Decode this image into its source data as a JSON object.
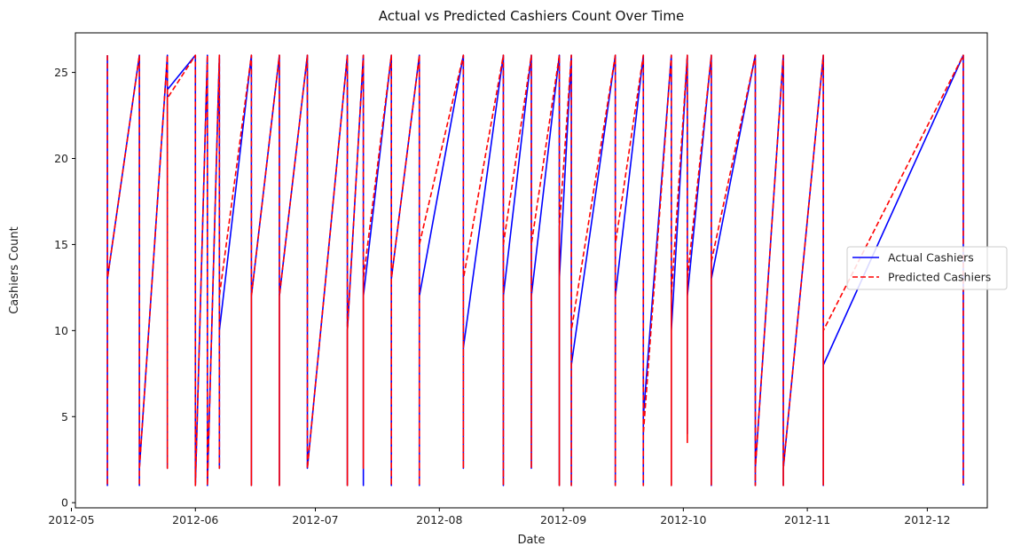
{
  "chart_data": {
    "type": "line",
    "title": "Actual vs Predicted Cashiers Count Over Time",
    "xlabel": "Date",
    "ylabel": "Cashiers Count",
    "x_type": "date",
    "xlim": [
      "2012-05-02",
      "2012-12-16"
    ],
    "ylim": [
      -0.3,
      27.3
    ],
    "x_ticks": [
      "2012-05-01",
      "2012-06-01",
      "2012-07-01",
      "2012-08-01",
      "2012-09-01",
      "2012-10-01",
      "2012-11-01",
      "2012-12-01"
    ],
    "x_tick_labels": [
      "2012-05",
      "2012-06",
      "2012-07",
      "2012-08",
      "2012-09",
      "2012-10",
      "2012-11",
      "2012-12"
    ],
    "y_ticks": [
      0,
      5,
      10,
      15,
      20,
      25
    ],
    "y_tick_labels": [
      "0",
      "5",
      "10",
      "15",
      "20",
      "25"
    ],
    "grid": false,
    "legend_position": "center-right",
    "series": [
      {
        "name": "Actual Cashiers",
        "color": "#0000ff",
        "style": "solid",
        "points": [
          [
            "2012-05-10",
            26
          ],
          [
            "2012-05-10",
            1
          ],
          [
            "2012-05-10",
            13
          ],
          [
            "2012-05-18",
            26
          ],
          [
            "2012-05-18",
            1
          ],
          [
            "2012-05-18",
            2
          ],
          [
            "2012-05-25",
            26
          ],
          [
            "2012-05-25",
            2
          ],
          [
            "2012-05-25",
            24
          ],
          [
            "2012-06-01",
            26
          ],
          [
            "2012-06-01",
            1
          ],
          [
            "2012-06-04",
            26
          ],
          [
            "2012-06-04",
            1
          ],
          [
            "2012-06-07",
            26
          ],
          [
            "2012-06-07",
            2
          ],
          [
            "2012-06-07",
            10
          ],
          [
            "2012-06-15",
            26
          ],
          [
            "2012-06-15",
            1
          ],
          [
            "2012-06-15",
            12
          ],
          [
            "2012-06-22",
            26
          ],
          [
            "2012-06-22",
            1
          ],
          [
            "2012-06-22",
            12
          ],
          [
            "2012-06-29",
            26
          ],
          [
            "2012-06-29",
            2
          ],
          [
            "2012-07-09",
            26
          ],
          [
            "2012-07-09",
            1
          ],
          [
            "2012-07-09",
            10
          ],
          [
            "2012-07-13",
            26
          ],
          [
            "2012-07-13",
            1
          ],
          [
            "2012-07-13",
            12
          ],
          [
            "2012-07-20",
            26
          ],
          [
            "2012-07-20",
            1
          ],
          [
            "2012-07-20",
            13
          ],
          [
            "2012-07-27",
            26
          ],
          [
            "2012-07-27",
            1
          ],
          [
            "2012-07-27",
            12
          ],
          [
            "2012-08-07",
            26
          ],
          [
            "2012-08-07",
            2
          ],
          [
            "2012-08-07",
            9
          ],
          [
            "2012-08-17",
            26
          ],
          [
            "2012-08-17",
            1
          ],
          [
            "2012-08-17",
            12
          ],
          [
            "2012-08-24",
            26
          ],
          [
            "2012-08-24",
            2
          ],
          [
            "2012-08-24",
            12
          ],
          [
            "2012-08-31",
            26
          ],
          [
            "2012-08-31",
            1
          ],
          [
            "2012-08-31",
            13
          ],
          [
            "2012-09-03",
            26
          ],
          [
            "2012-09-03",
            1
          ],
          [
            "2012-09-03",
            8
          ],
          [
            "2012-09-14",
            26
          ],
          [
            "2012-09-14",
            1
          ],
          [
            "2012-09-14",
            12
          ],
          [
            "2012-09-21",
            26
          ],
          [
            "2012-09-21",
            1
          ],
          [
            "2012-09-21",
            5
          ],
          [
            "2012-09-28",
            26
          ],
          [
            "2012-09-28",
            1
          ],
          [
            "2012-09-28",
            10
          ],
          [
            "2012-10-02",
            26
          ],
          [
            "2012-10-02",
            4
          ],
          [
            "2012-10-02",
            12
          ],
          [
            "2012-10-08",
            26
          ],
          [
            "2012-10-08",
            1
          ],
          [
            "2012-10-08",
            13
          ],
          [
            "2012-10-19",
            26
          ],
          [
            "2012-10-19",
            1
          ],
          [
            "2012-10-19",
            2
          ],
          [
            "2012-10-26",
            26
          ],
          [
            "2012-10-26",
            1
          ],
          [
            "2012-10-26",
            2
          ],
          [
            "2012-11-05",
            26
          ],
          [
            "2012-11-05",
            1
          ],
          [
            "2012-11-05",
            8
          ],
          [
            "2012-12-10",
            26
          ],
          [
            "2012-12-10",
            1
          ]
        ]
      },
      {
        "name": "Predicted Cashiers",
        "color": "#ff0000",
        "style": "dashed",
        "points": [
          [
            "2012-05-10",
            26
          ],
          [
            "2012-05-10",
            1
          ],
          [
            "2012-05-10",
            13
          ],
          [
            "2012-05-18",
            26
          ],
          [
            "2012-05-18",
            1
          ],
          [
            "2012-05-18",
            2
          ],
          [
            "2012-05-25",
            26
          ],
          [
            "2012-05-25",
            2
          ],
          [
            "2012-05-25",
            23.5
          ],
          [
            "2012-06-01",
            26
          ],
          [
            "2012-06-01",
            1
          ],
          [
            "2012-06-04",
            26
          ],
          [
            "2012-06-04",
            1
          ],
          [
            "2012-06-07",
            26
          ],
          [
            "2012-06-07",
            2
          ],
          [
            "2012-06-07",
            12
          ],
          [
            "2012-06-15",
            26
          ],
          [
            "2012-06-15",
            1
          ],
          [
            "2012-06-15",
            12
          ],
          [
            "2012-06-22",
            26
          ],
          [
            "2012-06-22",
            1
          ],
          [
            "2012-06-22",
            12
          ],
          [
            "2012-06-29",
            26
          ],
          [
            "2012-06-29",
            2
          ],
          [
            "2012-07-09",
            26
          ],
          [
            "2012-07-09",
            1
          ],
          [
            "2012-07-09",
            10
          ],
          [
            "2012-07-13",
            26
          ],
          [
            "2012-07-13",
            2
          ],
          [
            "2012-07-13",
            13
          ],
          [
            "2012-07-20",
            26
          ],
          [
            "2012-07-20",
            1
          ],
          [
            "2012-07-20",
            13
          ],
          [
            "2012-07-27",
            26
          ],
          [
            "2012-07-27",
            1
          ],
          [
            "2012-07-27",
            15
          ],
          [
            "2012-08-07",
            26
          ],
          [
            "2012-08-07",
            2
          ],
          [
            "2012-08-07",
            13
          ],
          [
            "2012-08-17",
            26
          ],
          [
            "2012-08-17",
            1
          ],
          [
            "2012-08-17",
            15
          ],
          [
            "2012-08-24",
            26
          ],
          [
            "2012-08-24",
            2
          ],
          [
            "2012-08-24",
            15
          ],
          [
            "2012-08-31",
            26
          ],
          [
            "2012-08-31",
            1
          ],
          [
            "2012-08-31",
            16
          ],
          [
            "2012-09-03",
            26
          ],
          [
            "2012-09-03",
            1
          ],
          [
            "2012-09-03",
            10
          ],
          [
            "2012-09-14",
            26
          ],
          [
            "2012-09-14",
            1
          ],
          [
            "2012-09-14",
            15
          ],
          [
            "2012-09-21",
            26
          ],
          [
            "2012-09-21",
            1
          ],
          [
            "2012-09-21",
            4
          ],
          [
            "2012-09-28",
            26
          ],
          [
            "2012-09-28",
            1
          ],
          [
            "2012-09-28",
            12
          ],
          [
            "2012-10-02",
            26
          ],
          [
            "2012-10-02",
            3.5
          ],
          [
            "2012-10-02",
            13
          ],
          [
            "2012-10-08",
            26
          ],
          [
            "2012-10-08",
            1
          ],
          [
            "2012-10-08",
            14
          ],
          [
            "2012-10-19",
            26
          ],
          [
            "2012-10-19",
            1
          ],
          [
            "2012-10-19",
            2
          ],
          [
            "2012-10-26",
            26
          ],
          [
            "2012-10-26",
            1
          ],
          [
            "2012-10-26",
            2
          ],
          [
            "2012-11-05",
            26
          ],
          [
            "2012-11-05",
            1
          ],
          [
            "2012-11-05",
            10
          ],
          [
            "2012-12-10",
            26
          ],
          [
            "2012-12-10",
            1
          ]
        ]
      }
    ]
  }
}
